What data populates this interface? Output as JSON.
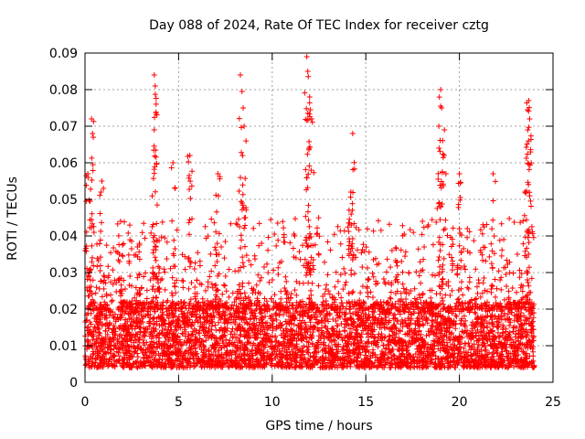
{
  "chart_data": {
    "type": "scatter",
    "title": "Day 088 of 2024, Rate Of TEC Index for receiver cztg",
    "xlabel": "GPS time / hours",
    "ylabel": "ROTI / TECUs",
    "xlim": [
      0,
      25
    ],
    "ylim": [
      0,
      0.09
    ],
    "xticks": [
      0,
      5,
      10,
      15,
      20,
      25
    ],
    "xtick_labels": [
      "0",
      "5",
      "10",
      "15",
      "20",
      "25"
    ],
    "yticks": [
      0,
      0.01,
      0.02,
      0.03,
      0.04,
      0.05,
      0.06,
      0.07,
      0.08,
      0.09
    ],
    "ytick_labels": [
      "0",
      "0.01",
      "0.02",
      "0.03",
      "0.04",
      "0.05",
      "0.06",
      "0.07",
      "0.08",
      "0.09"
    ],
    "grid": true,
    "marker": "+",
    "color": "#ff0000",
    "series": [
      {
        "name": "ROTI",
        "x_range_hours": [
          0,
          24
        ],
        "dense_band": [
          0.004,
          0.022
        ],
        "spikes": [
          {
            "x": 0.15,
            "y": 0.057
          },
          {
            "x": 0.35,
            "y": 0.072
          },
          {
            "x": 0.4,
            "y": 0.068
          },
          {
            "x": 0.9,
            "y": 0.055
          },
          {
            "x": 1.9,
            "y": 0.044
          },
          {
            "x": 2.8,
            "y": 0.037
          },
          {
            "x": 3.7,
            "y": 0.084
          },
          {
            "x": 3.75,
            "y": 0.081
          },
          {
            "x": 3.7,
            "y": 0.069
          },
          {
            "x": 4.7,
            "y": 0.06
          },
          {
            "x": 5.6,
            "y": 0.062
          },
          {
            "x": 7.1,
            "y": 0.057
          },
          {
            "x": 8.3,
            "y": 0.084
          },
          {
            "x": 8.45,
            "y": 0.075
          },
          {
            "x": 8.5,
            "y": 0.07
          },
          {
            "x": 11.85,
            "y": 0.089
          },
          {
            "x": 11.9,
            "y": 0.085
          },
          {
            "x": 12.0,
            "y": 0.078
          },
          {
            "x": 12.1,
            "y": 0.072
          },
          {
            "x": 14.3,
            "y": 0.068
          },
          {
            "x": 14.2,
            "y": 0.052
          },
          {
            "x": 19.0,
            "y": 0.08
          },
          {
            "x": 19.05,
            "y": 0.075
          },
          {
            "x": 18.9,
            "y": 0.07
          },
          {
            "x": 19.2,
            "y": 0.069
          },
          {
            "x": 20.0,
            "y": 0.057
          },
          {
            "x": 21.8,
            "y": 0.057
          },
          {
            "x": 23.7,
            "y": 0.077
          },
          {
            "x": 23.75,
            "y": 0.072
          },
          {
            "x": 23.65,
            "y": 0.069
          },
          {
            "x": 23.5,
            "y": 0.052
          }
        ]
      }
    ]
  }
}
